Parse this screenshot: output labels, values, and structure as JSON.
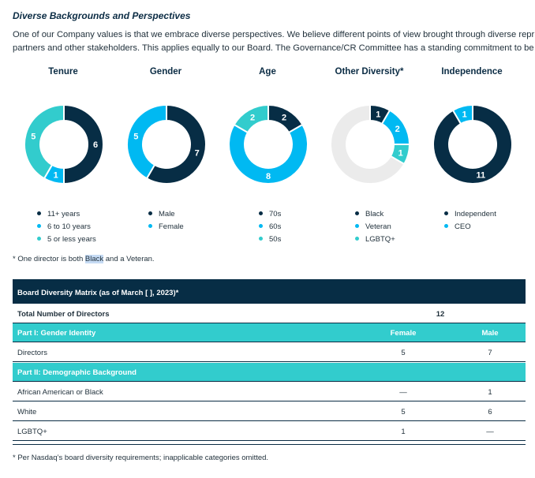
{
  "heading": "Diverse Backgrounds and Perspectives",
  "intro": {
    "line1": "One of our Company values is that we embrace diverse perspectives. We believe different points of view brought through diverse repr",
    "line2": "partners and other stakeholders. This applies equally to our Board. The Governance/CR Committee has a standing commitment to be"
  },
  "colors": {
    "navy": "#072d45",
    "sky": "#00b9f2",
    "teal": "#32cccd",
    "light": "#ebebeb"
  },
  "chart_data": [
    {
      "type": "pie",
      "title": "Tenure",
      "series": [
        {
          "name": "11+ years",
          "value": 6,
          "color": "#072d45"
        },
        {
          "name": "6 to 10 years",
          "value": 1,
          "color": "#00b9f2"
        },
        {
          "name": "5 or less years",
          "value": 5,
          "color": "#32cccd"
        }
      ]
    },
    {
      "type": "pie",
      "title": "Gender",
      "series": [
        {
          "name": "Male",
          "value": 7,
          "color": "#072d45"
        },
        {
          "name": "Female",
          "value": 5,
          "color": "#00b9f2"
        }
      ]
    },
    {
      "type": "pie",
      "title": "Age",
      "series": [
        {
          "name": "70s",
          "value": 2,
          "color": "#072d45"
        },
        {
          "name": "60s",
          "value": 8,
          "color": "#00b9f2"
        },
        {
          "name": "50s",
          "value": 2,
          "color": "#32cccd"
        }
      ]
    },
    {
      "type": "pie",
      "title": "Other Diversity*",
      "series": [
        {
          "name": "Black",
          "value": 1,
          "color": "#072d45"
        },
        {
          "name": "Veteran",
          "value": 2,
          "color": "#00b9f2"
        },
        {
          "name": "LGBTQ+",
          "value": 1,
          "color": "#32cccd"
        },
        {
          "name": "",
          "value": 8,
          "color": "#ebebeb"
        }
      ]
    },
    {
      "type": "pie",
      "title": "Independence",
      "series": [
        {
          "name": "Independent",
          "value": 11,
          "color": "#072d45"
        },
        {
          "name": "CEO",
          "value": 1,
          "color": "#00b9f2"
        }
      ]
    }
  ],
  "note": {
    "prefix": "*  One director is both ",
    "highlight": "Black",
    "suffix": " and a Veteran."
  },
  "matrix": {
    "title": "Board Diversity Matrix (as of March [ ], 2023)*",
    "total_label": "Total Number of Directors",
    "total_value": "12",
    "part1": {
      "label": "Part I: Gender Identity",
      "col_female": "Female",
      "col_male": "Male"
    },
    "directors": {
      "label": "Directors",
      "female": "5",
      "male": "7"
    },
    "part2": {
      "label": "Part II: Demographic Background"
    },
    "rows": [
      {
        "label": "African American or Black",
        "female": "—",
        "male": "1"
      },
      {
        "label": "White",
        "female": "5",
        "male": "6"
      },
      {
        "label": "LGBTQ+",
        "female": "1",
        "male": "—"
      }
    ]
  },
  "footnote": "*  Per Nasdaq’s board diversity requirements; inapplicable categories omitted."
}
